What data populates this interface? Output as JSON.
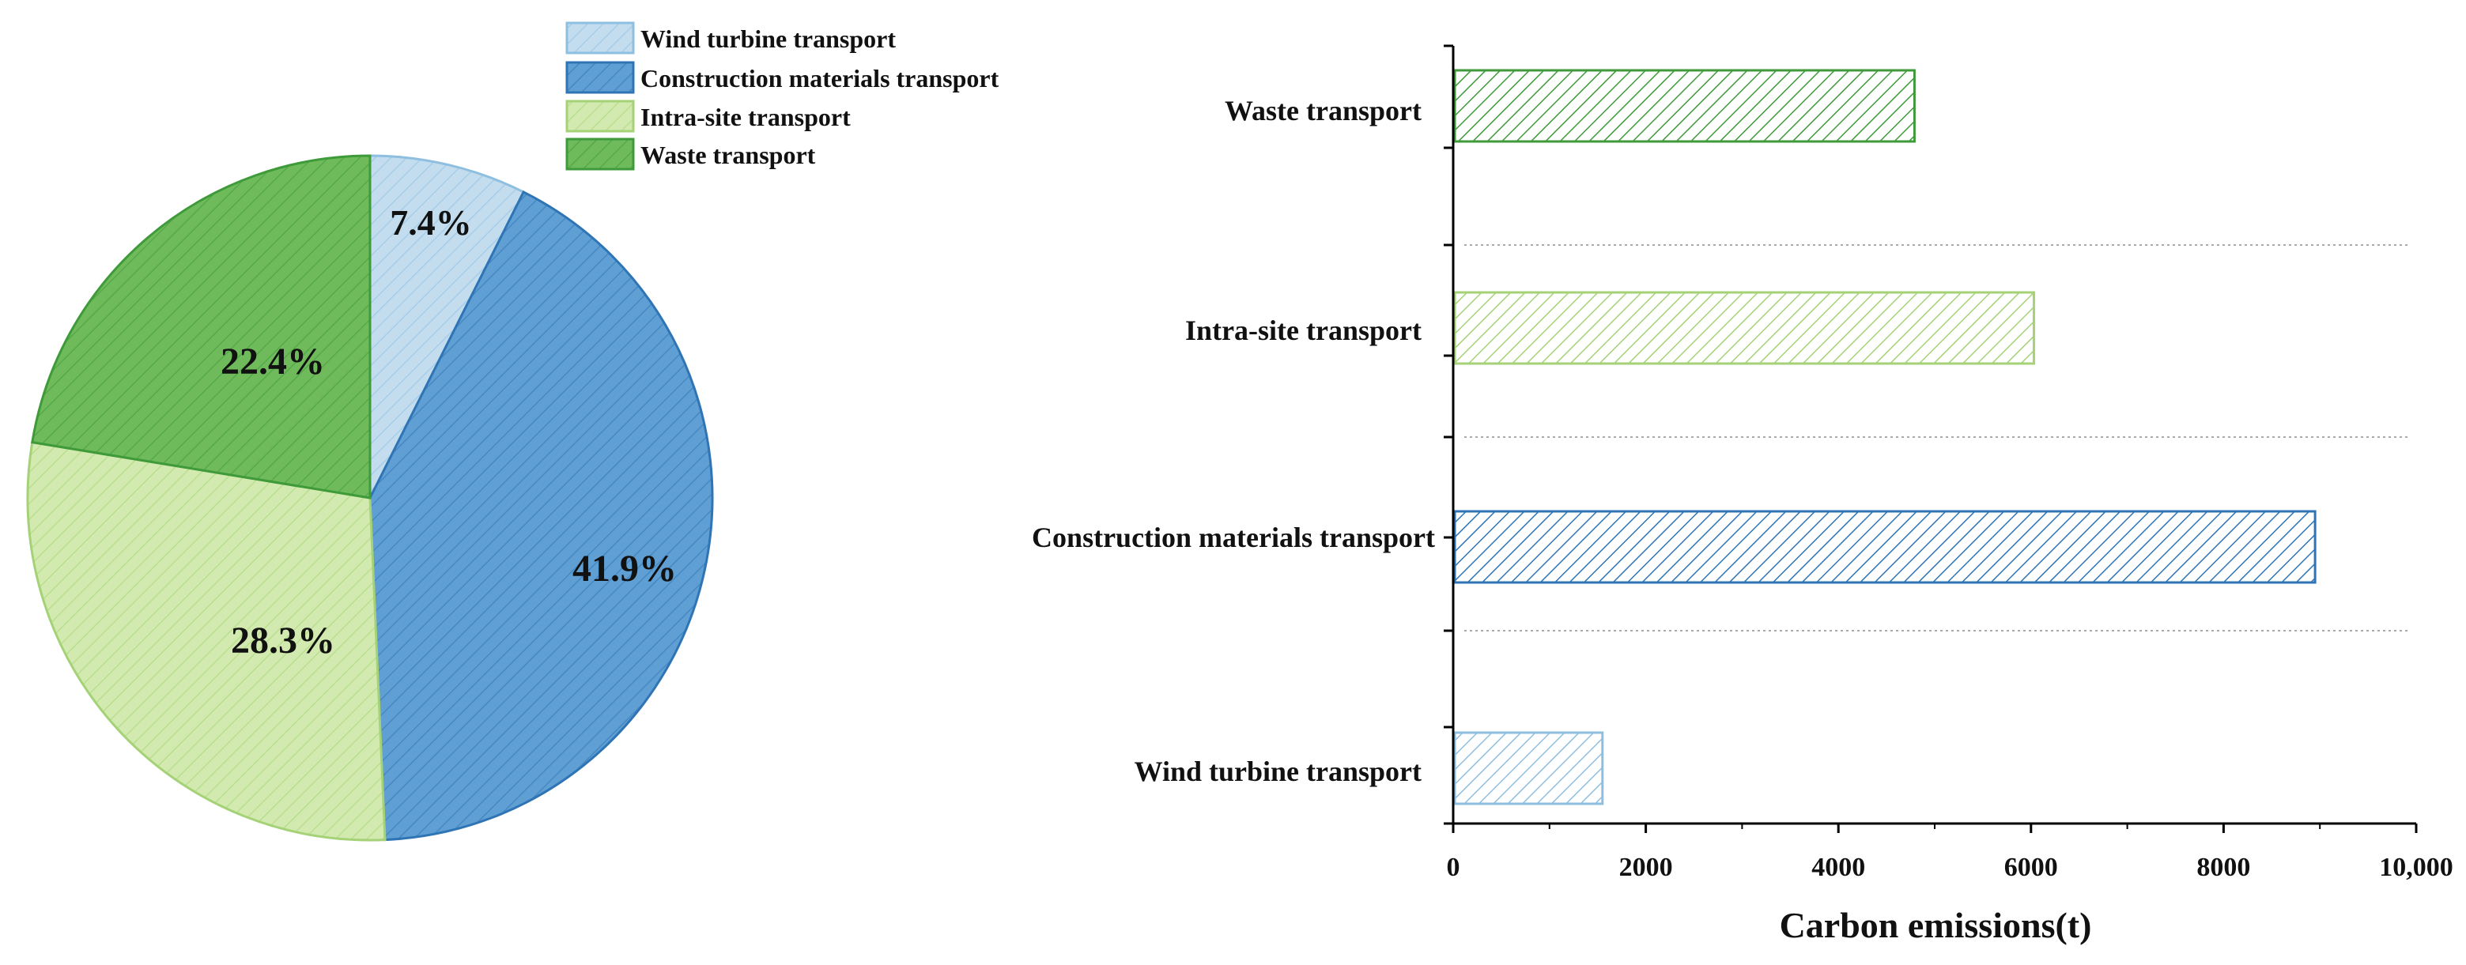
{
  "colors": {
    "wind_fill": "#c3ddef",
    "wind_stroke": "#8fbfe0",
    "construction_fill": "#5f9fd3",
    "construction_stroke": "#2f75b5",
    "intra_fill": "#d2eaaf",
    "intra_stroke": "#a5d277",
    "waste_fill": "#6fbb5c",
    "waste_stroke": "#3f9a3a",
    "axis": "#000000",
    "grid": "#aaaaaa"
  },
  "chart_data": [
    {
      "type": "pie",
      "categories": [
        "Wind turbine transport",
        "Construction materials transport",
        "Intra-site transport",
        "Waste transport"
      ],
      "values": [
        7.4,
        41.9,
        28.3,
        22.4
      ],
      "labels": [
        "7.4%",
        "41.9%",
        "28.3%",
        "22.4%"
      ],
      "legend": {
        "position": "top-right",
        "entries": [
          "Wind turbine transport",
          "Construction materials transport",
          "Intra-site transport",
          "Waste transport"
        ]
      }
    },
    {
      "type": "bar",
      "orientation": "horizontal",
      "categories": [
        "Wind turbine transport",
        "Construction materials transport",
        "Intra-site transport",
        "Waste transport"
      ],
      "values": [
        1550,
        8950,
        6030,
        4790
      ],
      "xlabel": "Carbon emissions(t)",
      "ylabel": "",
      "xlim": [
        0,
        10000
      ],
      "xticks": [
        0,
        2000,
        4000,
        6000,
        8000,
        10000
      ],
      "xtick_labels": [
        "0",
        "2000",
        "4000",
        "6000",
        "8000",
        "10,000"
      ],
      "grid": "dotted horizontal separators"
    }
  ]
}
